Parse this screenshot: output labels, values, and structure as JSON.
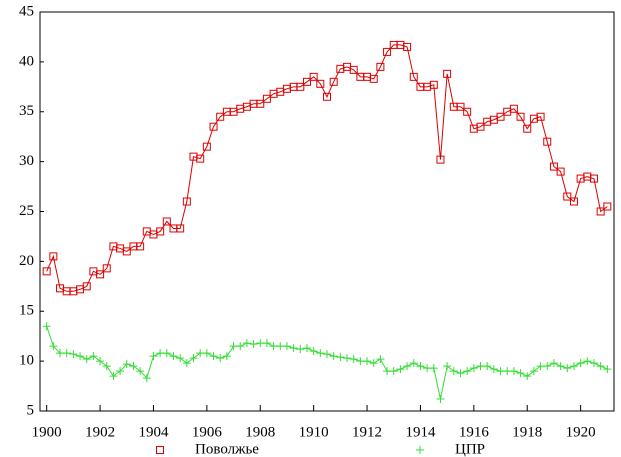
{
  "chart_data": {
    "type": "line",
    "x": [
      1900,
      1900.25,
      1900.5,
      1900.75,
      1901,
      1901.25,
      1901.5,
      1901.75,
      1902,
      1902.25,
      1902.5,
      1902.75,
      1903,
      1903.25,
      1903.5,
      1903.75,
      1904,
      1904.25,
      1904.5,
      1904.75,
      1905,
      1905.25,
      1905.5,
      1905.75,
      1906,
      1906.25,
      1906.5,
      1906.75,
      1907,
      1907.25,
      1907.5,
      1907.75,
      1908,
      1908.25,
      1908.5,
      1908.75,
      1909,
      1909.25,
      1909.5,
      1909.75,
      1910,
      1910.25,
      1910.5,
      1910.75,
      1911,
      1911.25,
      1911.5,
      1911.75,
      1912,
      1912.25,
      1912.5,
      1912.75,
      1913,
      1913.25,
      1913.5,
      1913.75,
      1914,
      1914.25,
      1914.5,
      1914.75,
      1915,
      1915.25,
      1915.5,
      1915.75,
      1916,
      1916.25,
      1916.5,
      1916.75,
      1917,
      1917.25,
      1917.5,
      1917.75,
      1918,
      1918.25,
      1918.5,
      1918.75,
      1919,
      1919.25,
      1919.5,
      1919.75,
      1920,
      1920.25,
      1920.5,
      1920.75,
      1921
    ],
    "series": [
      {
        "name": "Поволжье",
        "color": "#dd0000",
        "marker": "square",
        "values": [
          19,
          20.5,
          17.3,
          17,
          17,
          17.2,
          17.5,
          19,
          18.7,
          19.3,
          21.5,
          21.3,
          21,
          21.5,
          21.5,
          23,
          22.7,
          23,
          24,
          23.3,
          23.3,
          26,
          30.5,
          30.3,
          31.5,
          33.5,
          34.5,
          35,
          35,
          35.3,
          35.5,
          35.8,
          35.8,
          36.3,
          36.8,
          37,
          37.3,
          37.5,
          37.5,
          38,
          38.5,
          37.8,
          36.5,
          38,
          39.3,
          39.5,
          39.2,
          38.5,
          38.5,
          38.3,
          39.5,
          41,
          41.7,
          41.7,
          41.5,
          38.5,
          37.5,
          37.5,
          37.7,
          30.2,
          38.8,
          35.5,
          35.5,
          35,
          33.3,
          33.5,
          34,
          34.2,
          34.5,
          35,
          35.3,
          34.5,
          33.3,
          34.3,
          34.5,
          32,
          29.5,
          29,
          26.5,
          26,
          28.3,
          28.5,
          28.3,
          25,
          25.5
        ]
      },
      {
        "name": "ЦПР",
        "color": "#33dd33",
        "marker": "plus",
        "values": [
          13.5,
          11.5,
          10.8,
          10.8,
          10.7,
          10.5,
          10.2,
          10.5,
          10,
          9.5,
          8.5,
          9,
          9.7,
          9.5,
          9,
          8.3,
          10.5,
          10.8,
          10.8,
          10.5,
          10.3,
          9.8,
          10.3,
          10.8,
          10.8,
          10.5,
          10.3,
          10.5,
          11.5,
          11.5,
          11.8,
          11.7,
          11.8,
          11.8,
          11.5,
          11.5,
          11.5,
          11.3,
          11.2,
          11.3,
          11,
          10.8,
          10.7,
          10.5,
          10.4,
          10.3,
          10.2,
          10,
          10,
          9.8,
          10.2,
          9,
          9,
          9.2,
          9.5,
          9.8,
          9.5,
          9.3,
          9.3,
          6.2,
          9.5,
          9,
          8.8,
          9,
          9.3,
          9.5,
          9.5,
          9.2,
          9,
          9,
          9,
          8.8,
          8.5,
          9,
          9.5,
          9.5,
          9.8,
          9.5,
          9.3,
          9.5,
          9.8,
          10,
          9.8,
          9.5,
          9.2
        ]
      }
    ],
    "xlim": [
      1899.75,
      1921.25
    ],
    "xticks": [
      1900,
      1902,
      1904,
      1906,
      1908,
      1910,
      1912,
      1914,
      1916,
      1918,
      1920
    ],
    "ylim": [
      5,
      45
    ],
    "yticks": [
      5,
      10,
      15,
      20,
      25,
      30,
      35,
      40,
      45
    ],
    "legend": "bottom"
  }
}
